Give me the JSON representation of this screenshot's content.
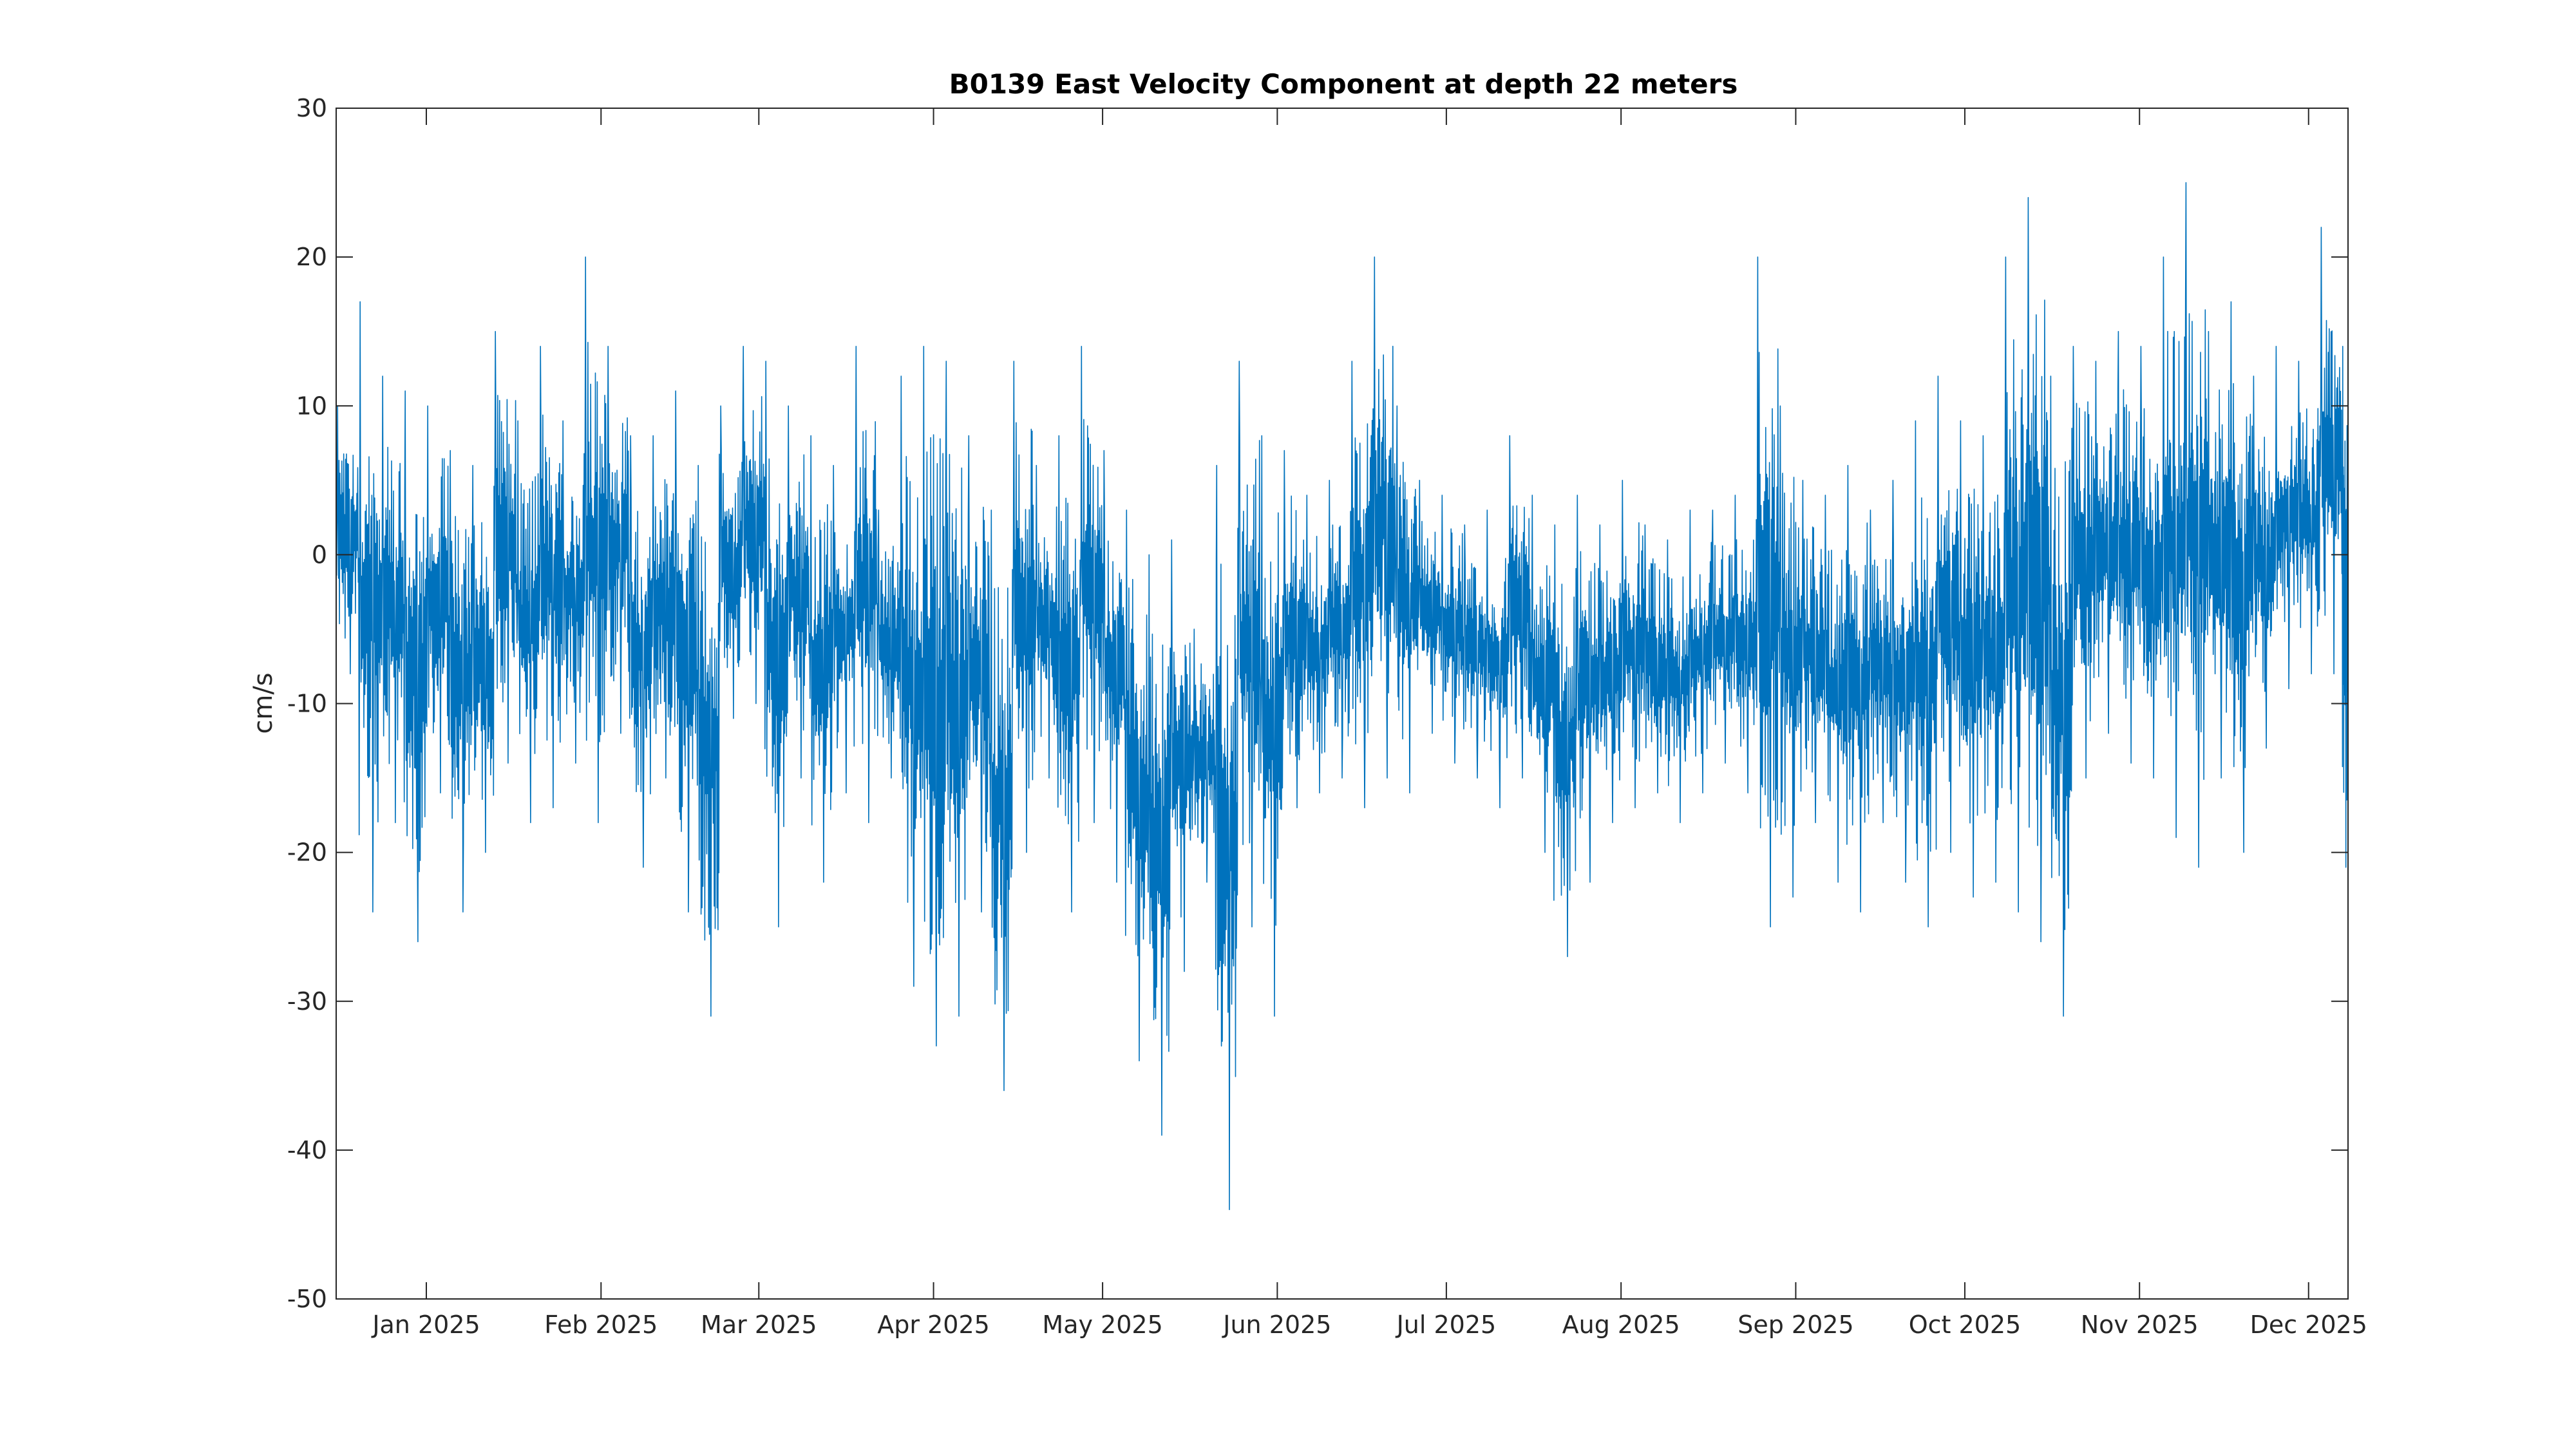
{
  "chart_data": {
    "type": "line",
    "title": "B0139 East Velocity Component at depth 22 meters",
    "xlabel": "",
    "ylabel": "cm/s",
    "xlim": [
      "2024-12-16",
      "2025-12-08"
    ],
    "ylim": [
      -50,
      30
    ],
    "grid": false,
    "legend": "none",
    "x_ticks": [
      {
        "date": "2025-01-01",
        "label": "Jan 2025"
      },
      {
        "date": "2025-02-01",
        "label": "Feb 2025"
      },
      {
        "date": "2025-03-01",
        "label": "Mar 2025"
      },
      {
        "date": "2025-04-01",
        "label": "Apr 2025"
      },
      {
        "date": "2025-05-01",
        "label": "May 2025"
      },
      {
        "date": "2025-06-01",
        "label": "Jun 2025"
      },
      {
        "date": "2025-07-01",
        "label": "Jul 2025"
      },
      {
        "date": "2025-08-01",
        "label": "Aug 2025"
      },
      {
        "date": "2025-09-01",
        "label": "Sep 2025"
      },
      {
        "date": "2025-10-01",
        "label": "Oct 2025"
      },
      {
        "date": "2025-11-01",
        "label": "Nov 2025"
      },
      {
        "date": "2025-12-01",
        "label": "Dec 2025"
      }
    ],
    "y_ticks": [
      30,
      20,
      10,
      0,
      -10,
      -20,
      -30,
      -40,
      -50
    ],
    "series": [
      {
        "color": "#0072BD",
        "x": [
          "2024-12-16",
          "2024-12-20",
          "2024-12-24",
          "2024-12-28",
          "2025-01-01",
          "2025-01-05",
          "2025-01-09",
          "2025-01-13",
          "2025-01-17",
          "2025-01-21",
          "2025-01-25",
          "2025-01-29",
          "2025-02-02",
          "2025-02-06",
          "2025-02-10",
          "2025-02-14",
          "2025-02-18",
          "2025-02-22",
          "2025-02-26",
          "2025-03-02",
          "2025-03-06",
          "2025-03-10",
          "2025-03-14",
          "2025-03-18",
          "2025-03-22",
          "2025-03-26",
          "2025-03-30",
          "2025-04-03",
          "2025-04-07",
          "2025-04-11",
          "2025-04-15",
          "2025-04-19",
          "2025-04-23",
          "2025-04-27",
          "2025-05-01",
          "2025-05-05",
          "2025-05-09",
          "2025-05-13",
          "2025-05-17",
          "2025-05-21",
          "2025-05-25",
          "2025-05-29",
          "2025-06-02",
          "2025-06-06",
          "2025-06-10",
          "2025-06-14",
          "2025-06-18",
          "2025-06-22",
          "2025-06-26",
          "2025-06-30",
          "2025-07-04",
          "2025-07-08",
          "2025-07-12",
          "2025-07-16",
          "2025-07-20",
          "2025-07-24",
          "2025-07-28",
          "2025-08-01",
          "2025-08-05",
          "2025-08-09",
          "2025-08-13",
          "2025-08-17",
          "2025-08-21",
          "2025-08-25",
          "2025-08-29",
          "2025-09-02",
          "2025-09-06",
          "2025-09-10",
          "2025-09-14",
          "2025-09-18",
          "2025-09-22",
          "2025-09-26",
          "2025-09-30",
          "2025-10-04",
          "2025-10-08",
          "2025-10-12",
          "2025-10-16",
          "2025-10-20",
          "2025-10-24",
          "2025-10-28",
          "2025-11-01",
          "2025-11-05",
          "2025-11-09",
          "2025-11-13",
          "2025-11-17",
          "2025-11-21",
          "2025-11-25",
          "2025-11-29",
          "2025-12-03",
          "2025-12-07"
        ],
        "y_min": [
          -8,
          -24,
          -18,
          -26,
          -16,
          -24,
          -20,
          -14,
          -18,
          -17,
          -14,
          -18,
          -12,
          -21,
          -15,
          -24,
          -31,
          -11,
          -10,
          -25,
          -15,
          -22,
          -16,
          -18,
          -15,
          -29,
          -33,
          -31,
          -24,
          -36,
          -20,
          -15,
          -24,
          -18,
          -22,
          -34,
          -39,
          -28,
          -22,
          -44,
          -25,
          -31,
          -17,
          -16,
          -15,
          -17,
          -15,
          -16,
          -12,
          -14,
          -15,
          -17,
          -15,
          -20,
          -27,
          -22,
          -18,
          -17,
          -16,
          -18,
          -16,
          -14,
          -16,
          -25,
          -23,
          -18,
          -22,
          -24,
          -18,
          -22,
          -25,
          -20,
          -23,
          -22,
          -24,
          -26,
          -31,
          -15,
          -12,
          -14,
          -15,
          -19,
          -21,
          -15,
          -20,
          -13,
          -9,
          -8,
          -8,
          -21
        ],
        "y_max": [
          10,
          17,
          12,
          11,
          10,
          7,
          6,
          15,
          9,
          14,
          9,
          20,
          14,
          8,
          8,
          11,
          6,
          10,
          14,
          13,
          10,
          8,
          6,
          14,
          3,
          12,
          14,
          13,
          8,
          3,
          13,
          6,
          8,
          14,
          7,
          3,
          0,
          1,
          -5,
          6,
          13,
          8,
          7,
          4,
          5,
          13,
          20,
          10,
          5,
          4,
          2,
          3,
          8,
          4,
          2,
          4,
          2,
          5,
          2,
          1,
          3,
          3,
          4,
          20,
          10,
          5,
          4,
          6,
          3,
          5,
          9,
          12,
          9,
          8,
          20,
          24,
          12,
          14,
          13,
          15,
          14,
          20,
          25,
          15,
          17,
          12,
          14,
          13,
          22,
          14
        ]
      }
    ]
  }
}
